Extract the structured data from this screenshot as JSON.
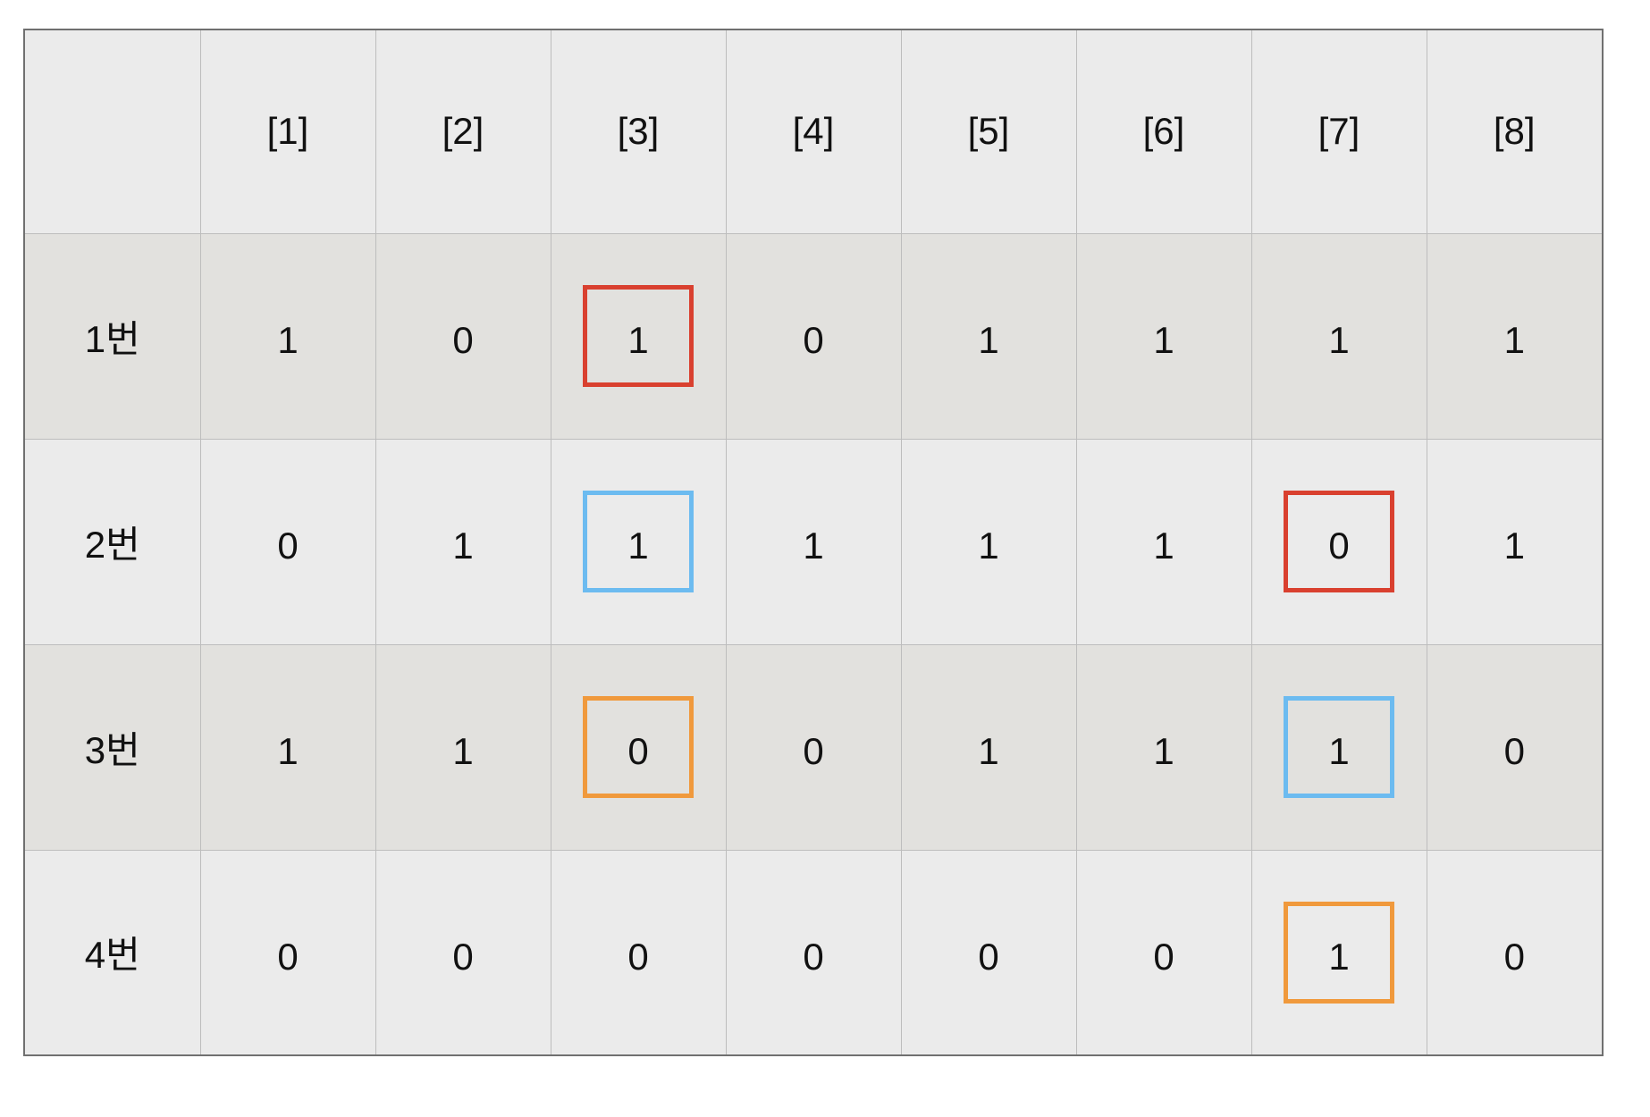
{
  "colors": {
    "red": "#d9402f",
    "blue": "#6cbbf0",
    "orange": "#f0993c",
    "row_light": "#ebebeb",
    "row_dark": "#e2e1de"
  },
  "table": {
    "corner": "",
    "columns": [
      "[1]",
      "[2]",
      "[3]",
      "[4]",
      "[5]",
      "[6]",
      "[7]",
      "[8]"
    ],
    "rows": [
      {
        "label": "1번",
        "values": [
          "1",
          "0",
          "1",
          "0",
          "1",
          "1",
          "1",
          "1"
        ]
      },
      {
        "label": "2번",
        "values": [
          "0",
          "1",
          "1",
          "1",
          "1",
          "1",
          "0",
          "1"
        ]
      },
      {
        "label": "3번",
        "values": [
          "1",
          "1",
          "0",
          "0",
          "1",
          "1",
          "1",
          "0"
        ]
      },
      {
        "label": "4번",
        "values": [
          "0",
          "0",
          "0",
          "0",
          "0",
          "0",
          "1",
          "0"
        ]
      }
    ],
    "highlights": [
      {
        "row": 1,
        "column": "[3]",
        "color": "red"
      },
      {
        "row": 2,
        "column": "[3]",
        "color": "blue"
      },
      {
        "row": 3,
        "column": "[3]",
        "color": "orange"
      },
      {
        "row": 2,
        "column": "[7]",
        "color": "red"
      },
      {
        "row": 3,
        "column": "[7]",
        "color": "blue"
      },
      {
        "row": 4,
        "column": "[7]",
        "color": "orange"
      }
    ]
  }
}
